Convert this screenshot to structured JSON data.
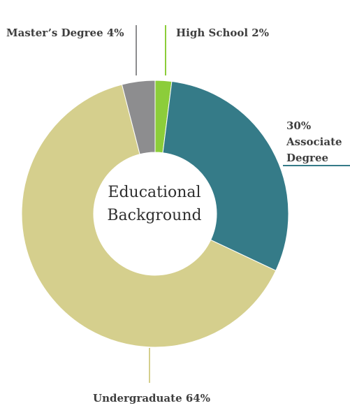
{
  "chart_data": {
    "type": "pie",
    "center_title": [
      "Educational",
      "Background"
    ],
    "slices": [
      {
        "label": "High School",
        "value": 2,
        "value_text": "2%",
        "color": "#8ccd3a"
      },
      {
        "label": "Associate Degree",
        "value": 30,
        "value_text": "30%",
        "color": "#357b88"
      },
      {
        "label": "Undergraduate",
        "value": 64,
        "value_text": "64%",
        "color": "#d5cf8d"
      },
      {
        "label": "Master’s Degree",
        "value": 4,
        "value_text": "4%",
        "color": "#8d8d8f"
      }
    ]
  },
  "labels": {
    "high_school": "High School 2%",
    "associate_pct": "30%",
    "associate_line1": "Associate",
    "associate_line2": "Degree",
    "undergraduate": "Undergraduate 64%",
    "masters": "Master’s Degree 4%"
  }
}
